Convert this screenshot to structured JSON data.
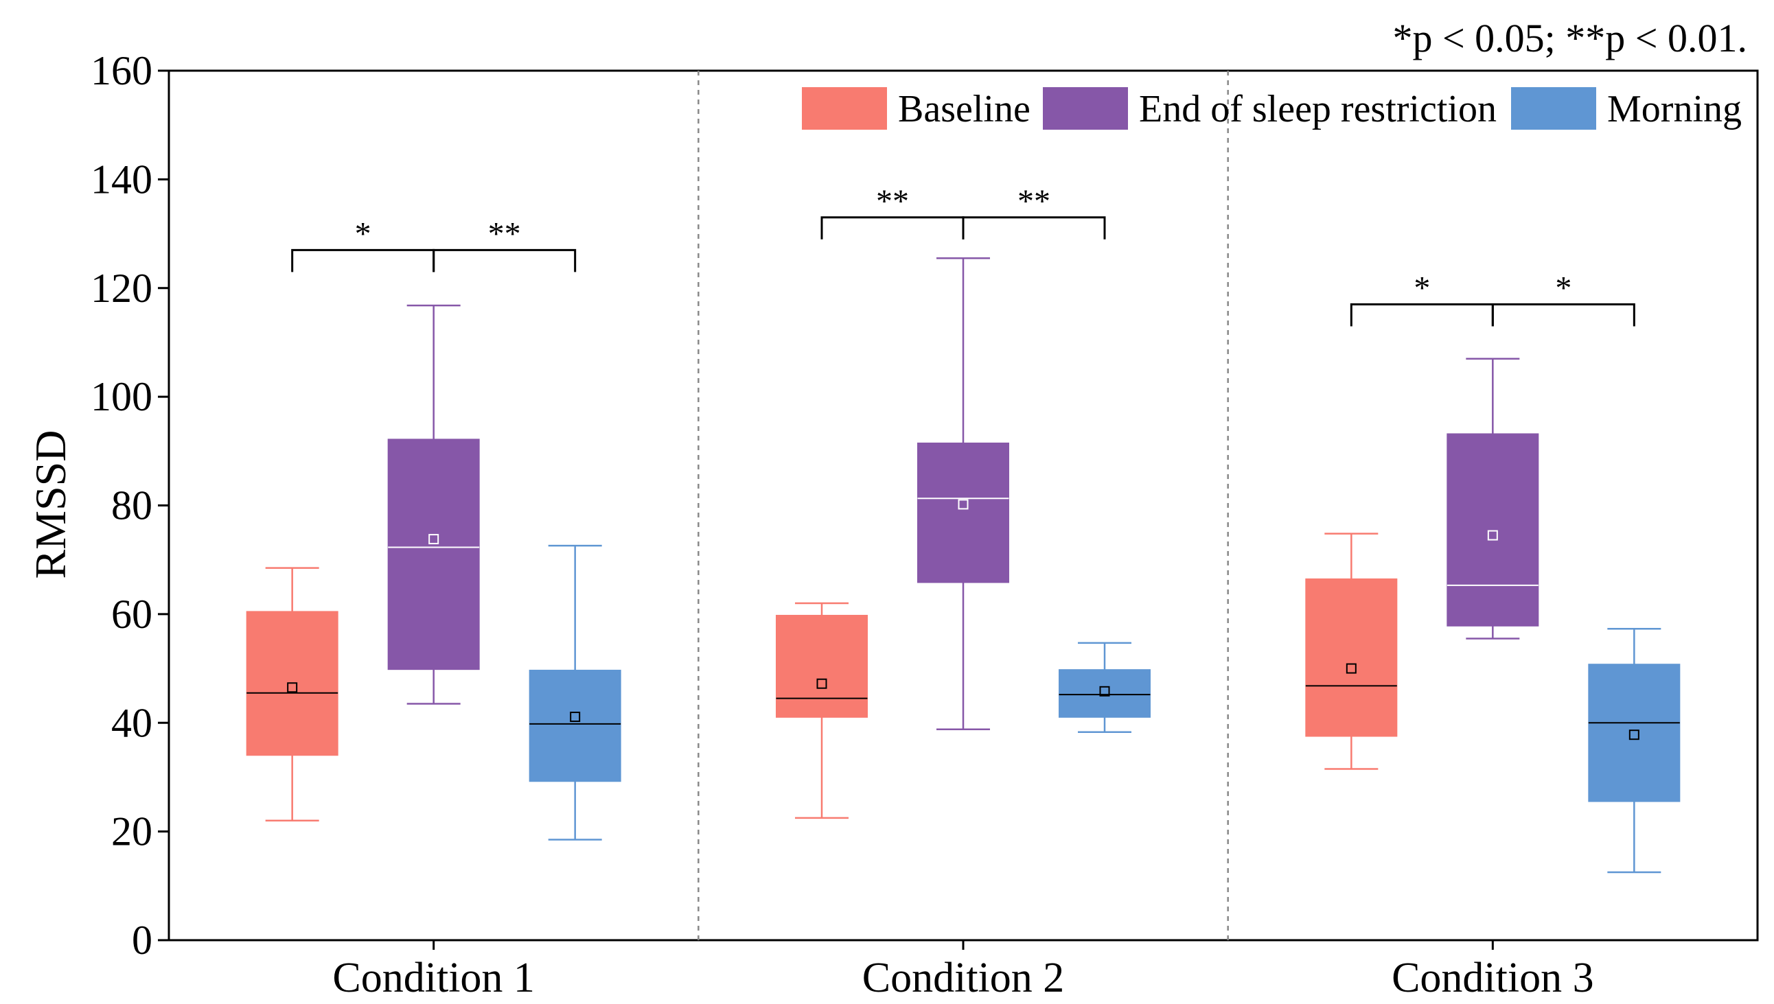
{
  "chart_data": {
    "type": "boxplot",
    "title": "",
    "note": "*p < 0.05; **p < 0.01.",
    "xlabel": "",
    "ylabel": "RMSSD",
    "ylim": [
      0,
      160
    ],
    "yticks": [
      "0",
      "20",
      "40",
      "60",
      "80",
      "100",
      "120",
      "140",
      "160"
    ],
    "grid": false,
    "legend_position": "top-right",
    "categories": [
      "Condition 1",
      "Condition 2",
      "Condition 3"
    ],
    "series": [
      {
        "name": "Baseline",
        "color": "#F87B70",
        "median_color": "#000000",
        "boxes": [
          {
            "whisker_low": 22,
            "q1": 34,
            "median": 45.5,
            "q3": 60.5,
            "whisker_high": 68.5,
            "mean": 46.5
          },
          {
            "whisker_low": 22.5,
            "q1": 41,
            "median": 44.5,
            "q3": 59.8,
            "whisker_high": 62,
            "mean": 47.2
          },
          {
            "whisker_low": 31.5,
            "q1": 37.5,
            "median": 46.8,
            "q3": 66.5,
            "whisker_high": 74.8,
            "mean": 50
          }
        ]
      },
      {
        "name": "End of sleep restriction",
        "color": "#8657A8",
        "median_color": "#ffffff",
        "boxes": [
          {
            "whisker_low": 43.5,
            "q1": 49.8,
            "median": 72.3,
            "q3": 92.2,
            "whisker_high": 116.8,
            "mean": 73.8
          },
          {
            "whisker_low": 38.8,
            "q1": 65.8,
            "median": 81.3,
            "q3": 91.5,
            "whisker_high": 125.5,
            "mean": 80.2
          },
          {
            "whisker_low": 55.5,
            "q1": 57.8,
            "median": 65.3,
            "q3": 93.2,
            "whisker_high": 107,
            "mean": 74.5
          }
        ]
      },
      {
        "name": "Morning",
        "color": "#5F96D3",
        "median_color": "#000000",
        "boxes": [
          {
            "whisker_low": 18.5,
            "q1": 29.2,
            "median": 39.8,
            "q3": 49.7,
            "whisker_high": 72.6,
            "mean": 41.1
          },
          {
            "whisker_low": 38.3,
            "q1": 41,
            "median": 45.2,
            "q3": 49.8,
            "whisker_high": 54.7,
            "mean": 45.8
          },
          {
            "whisker_low": 12.5,
            "q1": 25.5,
            "median": 40,
            "q3": 50.8,
            "whisker_high": 57.3,
            "mean": 37.8
          }
        ]
      }
    ],
    "significance": [
      {
        "condition": 0,
        "from_series": 0,
        "to_series": 1,
        "label": "*",
        "level": 127
      },
      {
        "condition": 0,
        "from_series": 1,
        "to_series": 2,
        "label": "**",
        "level": 127
      },
      {
        "condition": 1,
        "from_series": 0,
        "to_series": 1,
        "label": "**",
        "level": 133
      },
      {
        "condition": 1,
        "from_series": 1,
        "to_series": 2,
        "label": "**",
        "level": 133
      },
      {
        "condition": 2,
        "from_series": 0,
        "to_series": 1,
        "label": "*",
        "level": 117
      },
      {
        "condition": 2,
        "from_series": 1,
        "to_series": 2,
        "label": "*",
        "level": 117
      }
    ]
  }
}
